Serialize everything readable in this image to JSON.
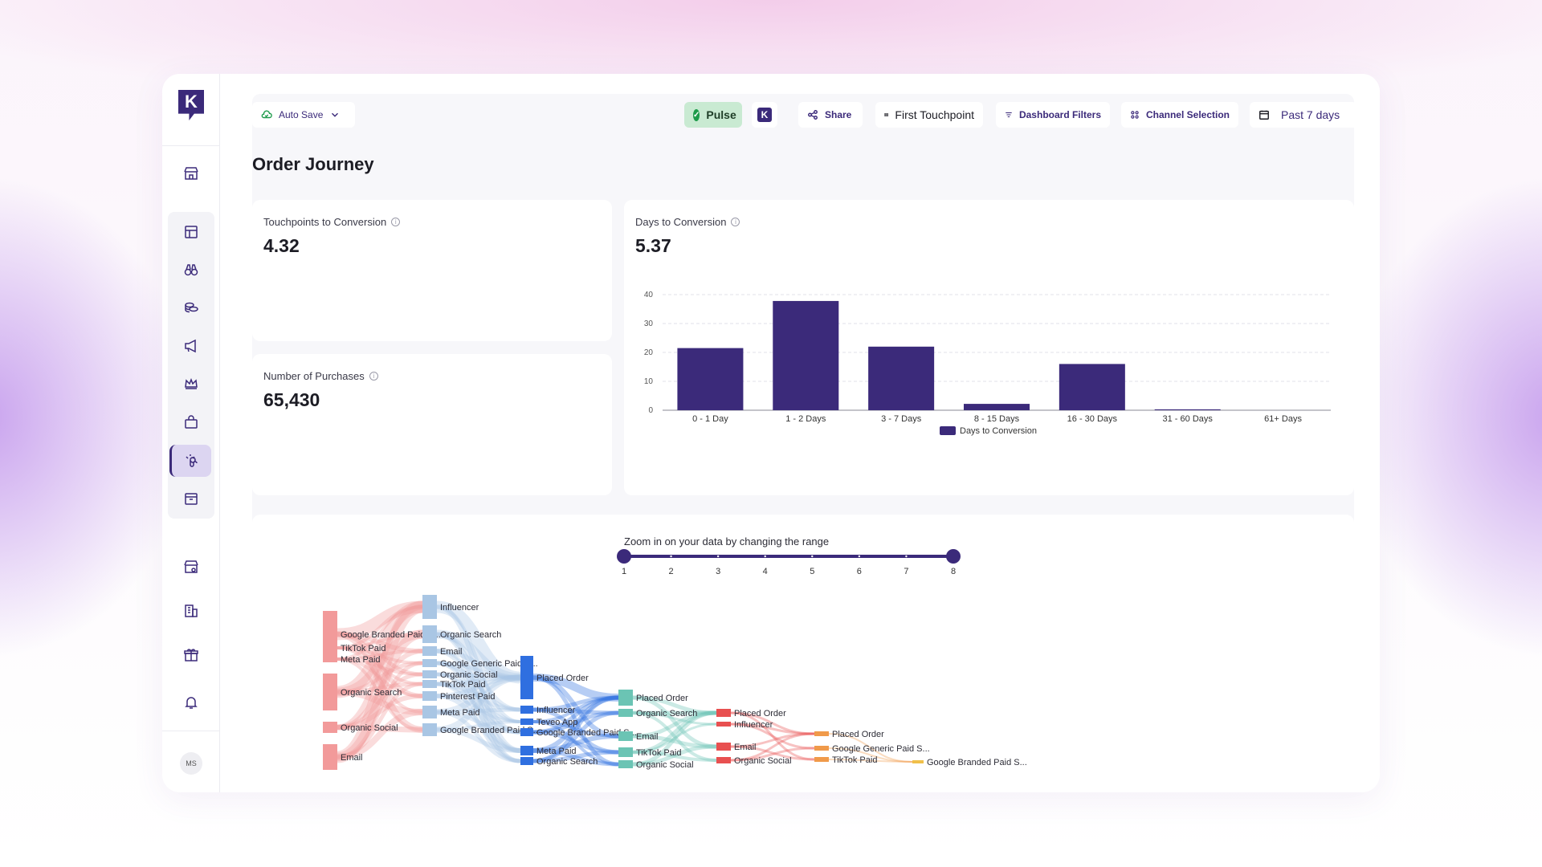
{
  "toolbar": {
    "auto_save": "Auto Save",
    "pulse": "Pulse",
    "share": "Share",
    "first_touchpoint": "First Touchpoint",
    "dashboard_filters": "Dashboard Filters",
    "channel_selection": "Channel Selection",
    "date_range": "Past 7 days"
  },
  "page_title": "Order Journey",
  "user_initials": "MS",
  "cards": {
    "touchpoints": {
      "label": "Touchpoints to Conversion",
      "value": "4.32"
    },
    "purchases": {
      "label": "Number of Purchases",
      "value": "65,430"
    },
    "days": {
      "label": "Days to Conversion",
      "value": "5.37"
    }
  },
  "chart_data": {
    "type": "bar",
    "categories": [
      "0 - 1 Day",
      "1 - 2 Days",
      "3 - 7 Days",
      "8 - 15 Days",
      "16 - 30 Days",
      "31 - 60 Days",
      "61+ Days"
    ],
    "series": [
      {
        "name": "Days to Conversion",
        "values": [
          21.5,
          37.8,
          22,
          2.2,
          16,
          0.3,
          0
        ]
      }
    ],
    "ylim": [
      0,
      40
    ],
    "yticks": [
      0,
      10,
      20,
      30,
      40
    ],
    "legend": "bottom-center",
    "grid": true,
    "color": "#3b2a7a"
  },
  "slider": {
    "title": "Zoom in on your data by changing the range",
    "ticks": [
      "1",
      "2",
      "3",
      "4",
      "5",
      "6",
      "7",
      "8"
    ],
    "range": [
      1,
      8
    ]
  },
  "sankey": {
    "col1": [
      "Google Branded Paid S...",
      "TikTok Paid",
      "Meta Paid",
      "Organic Search",
      "Organic Social",
      "Email"
    ],
    "col2": [
      "Influencer",
      "Organic Search",
      "Email",
      "Google Generic Paid S...",
      "Organic Social",
      "TikTok Paid",
      "Pinterest Paid",
      "Meta Paid",
      "Google Branded Paid S..."
    ],
    "col3": [
      "Placed Order",
      "Influencer",
      "Teveo App",
      "Google Branded Paid S...",
      "Meta Paid",
      "Organic Search"
    ],
    "col4": [
      "Placed Order",
      "Organic Search",
      "Email",
      "TikTok Paid",
      "Organic Social"
    ],
    "col5": [
      "Placed Order",
      "Influencer",
      "Email",
      "Organic Social"
    ],
    "col6": [
      "Placed Order",
      "Google Generic Paid S...",
      "TikTok Paid"
    ],
    "col7": [
      "Google Branded Paid S..."
    ]
  },
  "colors": {
    "accent": "#3b2a7a",
    "pulse_bg": "#c9ead2"
  }
}
